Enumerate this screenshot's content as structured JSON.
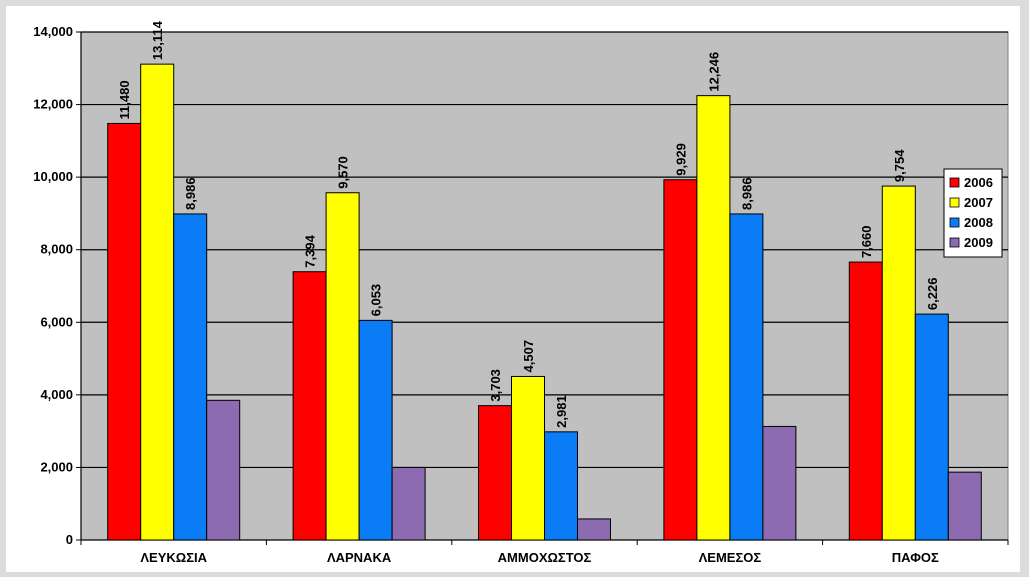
{
  "chart_data": {
    "type": "bar",
    "title": "",
    "xlabel": "",
    "ylabel": "",
    "ylim": [
      0,
      14000
    ],
    "yticks": [
      0,
      2000,
      4000,
      6000,
      8000,
      10000,
      12000,
      14000
    ],
    "ytick_labels": [
      "0",
      "2,000",
      "4,000",
      "6,000",
      "8,000",
      "10,000",
      "12,000",
      "14,000"
    ],
    "grid": true,
    "legend_position": "right",
    "categories": [
      "ΛΕΥΚΩΣΙΑ",
      "ΛΑΡΝΑΚΑ",
      "ΑΜΜΟΧΩΣΤΟΣ",
      "ΛΕΜΕΣΟΣ",
      "ΠΑΦΟΣ"
    ],
    "series": [
      {
        "name": "2006",
        "color": "#ff0000",
        "values": [
          11480,
          7394,
          3703,
          9929,
          7660
        ],
        "labels": [
          "11,480",
          "7,394",
          "3,703",
          "9,929",
          "7,660"
        ]
      },
      {
        "name": "2007",
        "color": "#ffff00",
        "values": [
          13114,
          9570,
          4507,
          12246,
          9754
        ],
        "labels": [
          "13,114",
          "9,570",
          "4,507",
          "12,246",
          "9,754"
        ]
      },
      {
        "name": "2008",
        "color": "#0a7cf5",
        "values": [
          8986,
          6053,
          2981,
          8986,
          6226
        ],
        "labels": [
          "8,986",
          "6,053",
          "2,981",
          "8,986",
          "6,226"
        ]
      },
      {
        "name": "2009",
        "color": "#8d6bb0",
        "values": [
          3850,
          2000,
          580,
          3130,
          1870
        ],
        "labels": null
      }
    ]
  }
}
